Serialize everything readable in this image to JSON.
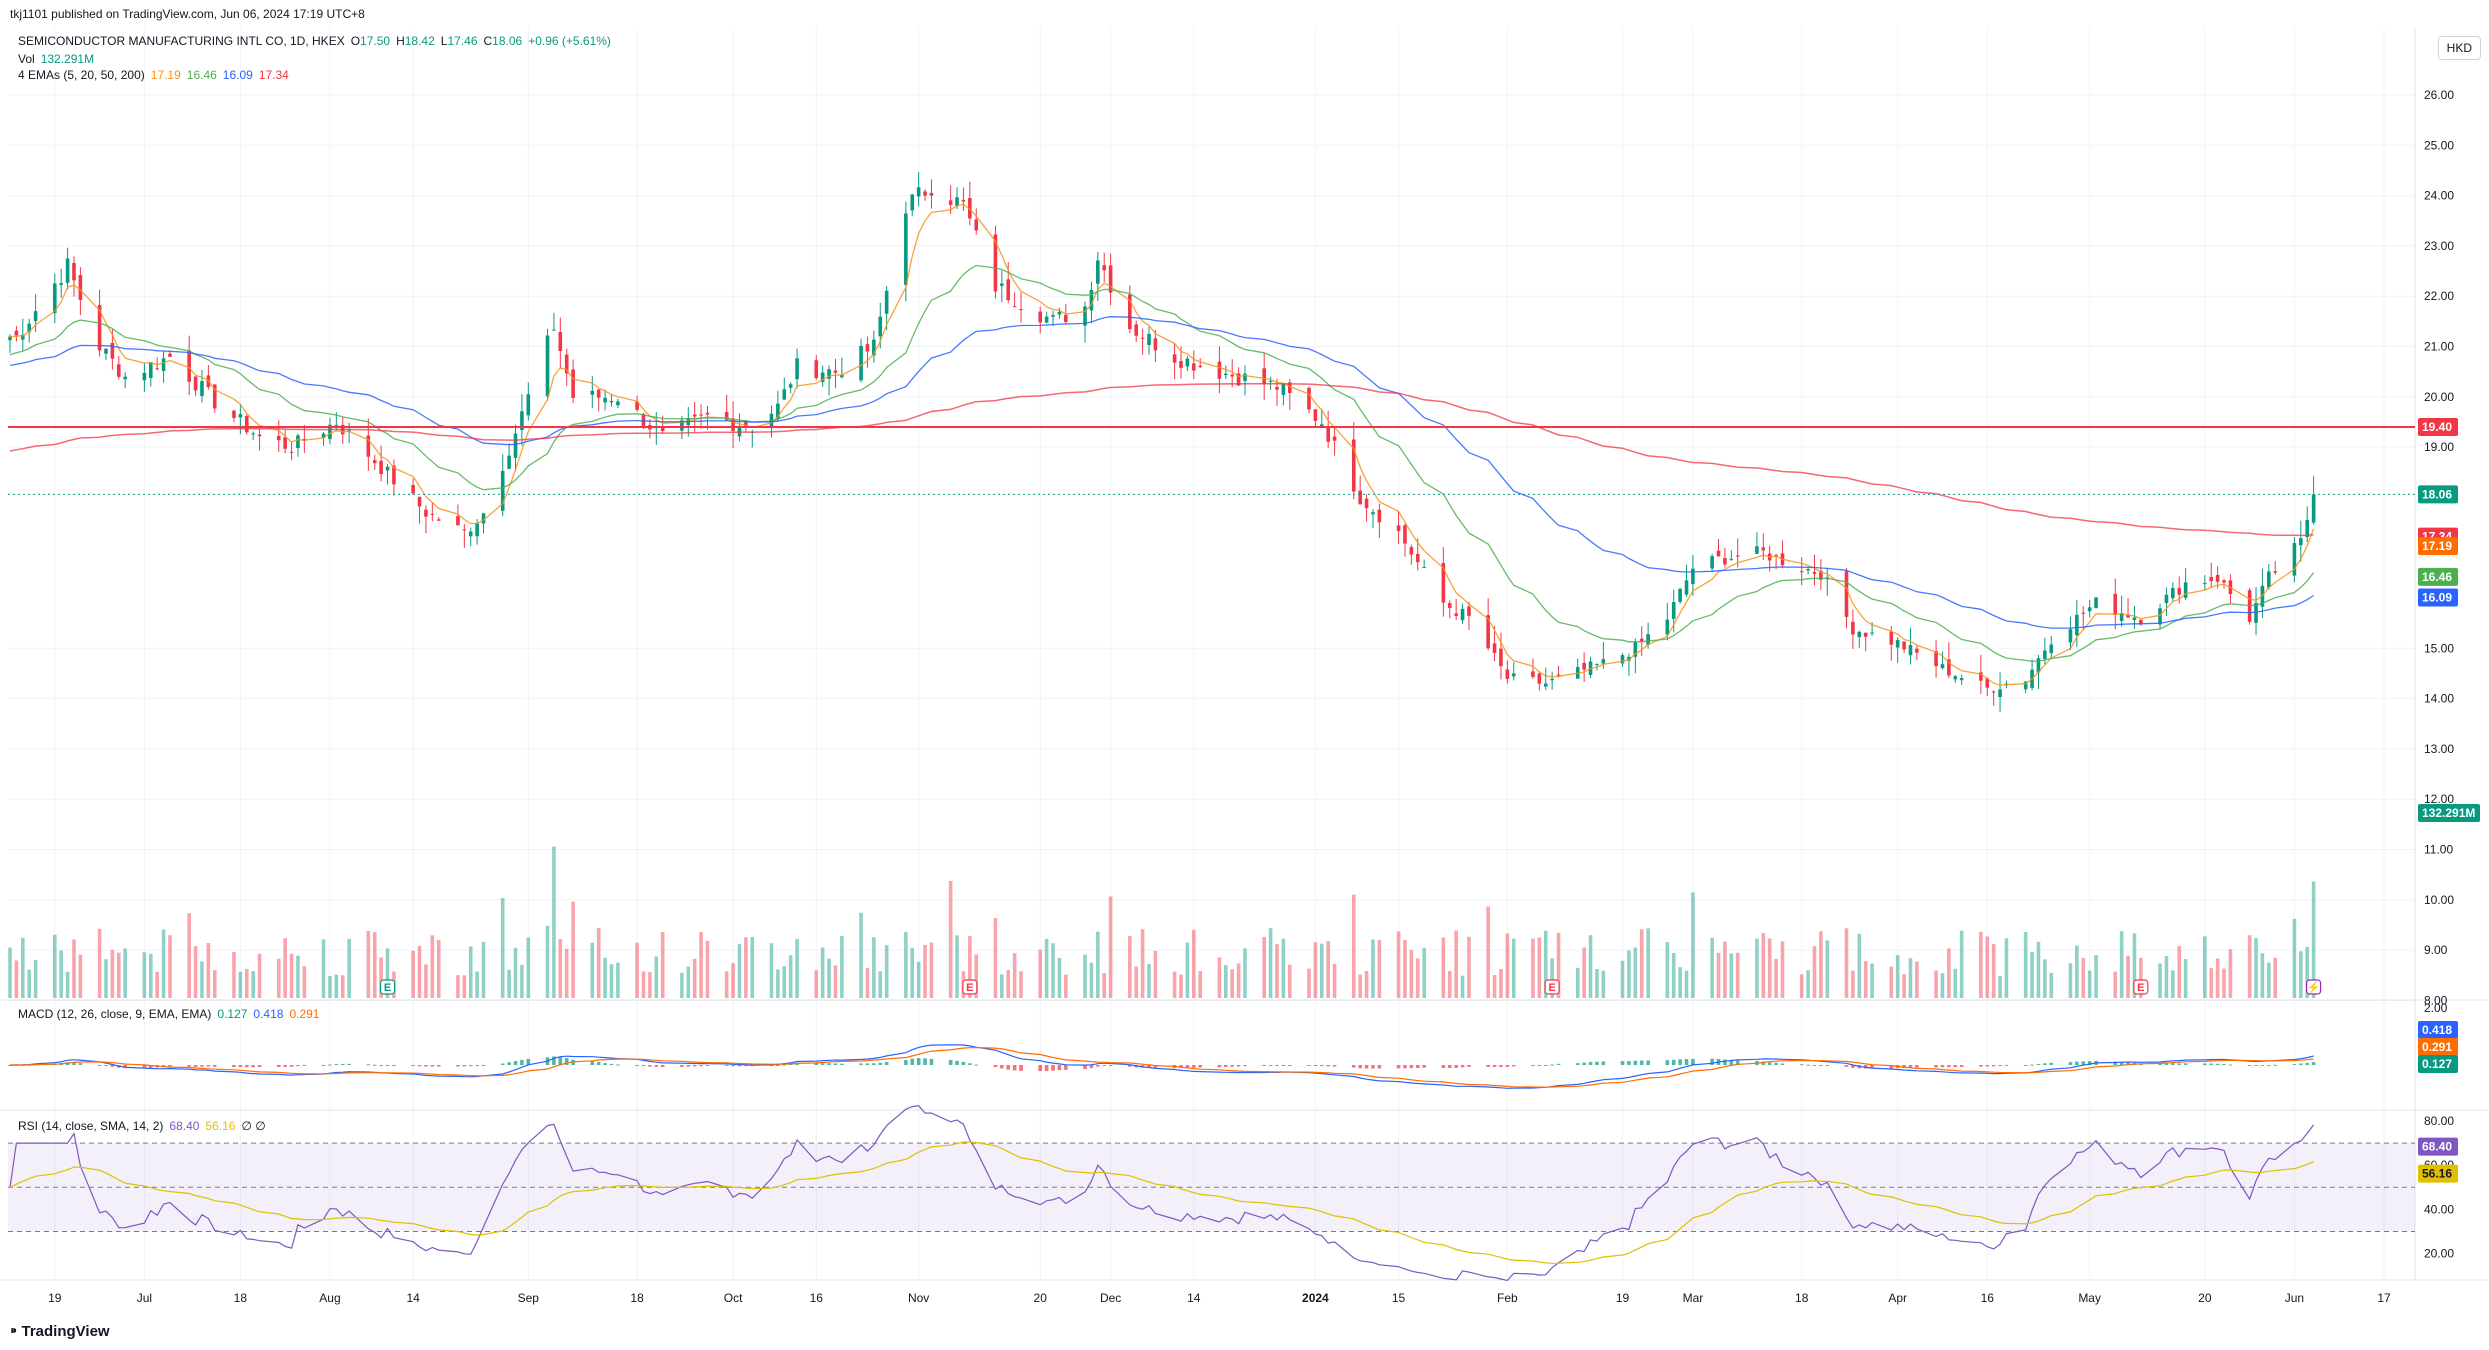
{
  "publish_line": "tkj1101 published on TradingView.com, Jun 06, 2024 17:19 UTC+8",
  "legend": {
    "symbol": "SEMICONDUCTOR MANUFACTURING INTL CO, 1D, HKEX",
    "open_label": "O",
    "open": "17.50",
    "high_label": "H",
    "high": "18.42",
    "low_label": "L",
    "low": "17.46",
    "close_label": "C",
    "close": "18.06",
    "change": "+0.96 (+5.61%)",
    "vol_label": "Vol",
    "vol": "132.291M",
    "ema_label": "4 EMAs (5, 20, 50, 200)",
    "ema5": "17.19",
    "ema20": "16.46",
    "ema50": "16.09",
    "ema200": "17.34",
    "macd_label": "MACD (12, 26, close, 9, EMA, EMA)",
    "macd_hist": "0.127",
    "macd_line": "0.418",
    "macd_signal": "0.291",
    "rsi_label": "RSI (14, close, SMA, 14, 2)",
    "rsi": "68.40",
    "rsi_ma": "56.16",
    "rsi_extra": "∅ ∅"
  },
  "currency": "HKD",
  "brand": "TradingView",
  "colors": {
    "up": "#089981",
    "down": "#f23645",
    "ema5": "#f7931a",
    "ema20": "#4caf50",
    "ema50": "#2962ff",
    "ema200": "#f23645",
    "hline": "#f23645",
    "rsi": "#7e57c2",
    "rsi_ma": "#e0c000"
  },
  "chart_data": {
    "type": "candlestick",
    "symbol": "SEMICONDUCTOR MANUFACTURING INTL CO",
    "interval": "1D",
    "exchange": "HKEX",
    "currency": "HKD",
    "price_axis": {
      "ticks": [
        "26.00",
        "25.00",
        "24.00",
        "23.00",
        "22.00",
        "21.00",
        "20.00",
        "19.00",
        "15.00",
        "14.00",
        "13.00",
        "12.00",
        "11.00",
        "10.00",
        "9.00",
        "8.00"
      ],
      "ylim": [
        8.0,
        26.0
      ]
    },
    "time_axis": {
      "ticks": [
        "19",
        "Jul",
        "18",
        "Aug",
        "14",
        "Sep",
        "18",
        "Oct",
        "16",
        "Nov",
        "20",
        "Dec",
        "14",
        "2024",
        "15",
        "Feb",
        "19",
        "Mar",
        "18",
        "Apr",
        "16",
        "May",
        "20",
        "Jun",
        "17"
      ]
    },
    "price_tags": [
      {
        "value": "19.40",
        "color": "#f23645"
      },
      {
        "value": "18.06",
        "color": "#089981"
      },
      {
        "value": "17.34",
        "color": "#f23645"
      },
      {
        "value": "17.19",
        "color": "#ff6d00"
      },
      {
        "value": "16.46",
        "color": "#4caf50"
      },
      {
        "value": "16.09",
        "color": "#2962ff"
      },
      {
        "value": "132.291M",
        "color": "#089981"
      }
    ],
    "horizontal_line": 19.4,
    "last_price_line": 18.06,
    "price_anchors": [
      {
        "date": "2023-06-13",
        "close": 21.2
      },
      {
        "date": "2023-06-21",
        "close": 22.6
      },
      {
        "date": "2023-06-26",
        "close": 21.0
      },
      {
        "date": "2023-06-30",
        "close": 20.4
      },
      {
        "date": "2023-07-07",
        "close": 20.8
      },
      {
        "date": "2023-07-14",
        "close": 19.9
      },
      {
        "date": "2023-07-21",
        "close": 19.2
      },
      {
        "date": "2023-07-26",
        "close": 19.0
      },
      {
        "date": "2023-08-02",
        "close": 19.5
      },
      {
        "date": "2023-08-09",
        "close": 18.6
      },
      {
        "date": "2023-08-16",
        "close": 17.7
      },
      {
        "date": "2023-08-22",
        "close": 17.3
      },
      {
        "date": "2023-08-25",
        "close": 17.7
      },
      {
        "date": "2023-08-30",
        "close": 19.3
      },
      {
        "date": "2023-09-05",
        "close": 21.4
      },
      {
        "date": "2023-09-08",
        "close": 20.0
      },
      {
        "date": "2023-09-15",
        "close": 20.0
      },
      {
        "date": "2023-09-22",
        "close": 19.2
      },
      {
        "date": "2023-09-29",
        "close": 19.6
      },
      {
        "date": "2023-10-06",
        "close": 19.4
      },
      {
        "date": "2023-10-10",
        "close": 19.8
      },
      {
        "date": "2023-10-13",
        "close": 20.6
      },
      {
        "date": "2023-10-19",
        "close": 20.5
      },
      {
        "date": "2023-10-25",
        "close": 21.0
      },
      {
        "date": "2023-10-30",
        "close": 23.8
      },
      {
        "date": "2023-11-03",
        "close": 24.2
      },
      {
        "date": "2023-11-08",
        "close": 23.8
      },
      {
        "date": "2023-11-13",
        "close": 22.2
      },
      {
        "date": "2023-11-17",
        "close": 21.9
      },
      {
        "date": "2023-11-22",
        "close": 21.5
      },
      {
        "date": "2023-11-27",
        "close": 21.8
      },
      {
        "date": "2023-11-29",
        "close": 22.8
      },
      {
        "date": "2023-12-04",
        "close": 21.4
      },
      {
        "date": "2023-12-11",
        "close": 20.8
      },
      {
        "date": "2023-12-18",
        "close": 20.5
      },
      {
        "date": "2023-12-27",
        "close": 20.2
      },
      {
        "date": "2024-01-03",
        "close": 19.5
      },
      {
        "date": "2024-01-09",
        "close": 18.0
      },
      {
        "date": "2024-01-15",
        "close": 17.3
      },
      {
        "date": "2024-01-22",
        "close": 15.9
      },
      {
        "date": "2024-01-26",
        "close": 15.6
      },
      {
        "date": "2024-02-01",
        "close": 14.4
      },
      {
        "date": "2024-02-07",
        "close": 14.3
      },
      {
        "date": "2024-02-16",
        "close": 14.7
      },
      {
        "date": "2024-02-21",
        "close": 15.0
      },
      {
        "date": "2024-02-26",
        "close": 15.6
      },
      {
        "date": "2024-03-01",
        "close": 16.6
      },
      {
        "date": "2024-03-06",
        "close": 16.8
      },
      {
        "date": "2024-03-12",
        "close": 16.9
      },
      {
        "date": "2024-03-18",
        "close": 16.6
      },
      {
        "date": "2024-03-21",
        "close": 16.5
      },
      {
        "date": "2024-03-26",
        "close": 15.4
      },
      {
        "date": "2024-04-02",
        "close": 15.1
      },
      {
        "date": "2024-04-09",
        "close": 14.6
      },
      {
        "date": "2024-04-16",
        "close": 14.2
      },
      {
        "date": "2024-04-22",
        "close": 14.4
      },
      {
        "date": "2024-04-26",
        "close": 15.2
      },
      {
        "date": "2024-05-03",
        "close": 15.9
      },
      {
        "date": "2024-05-10",
        "close": 15.6
      },
      {
        "date": "2024-05-17",
        "close": 16.3
      },
      {
        "date": "2024-05-22",
        "close": 16.4
      },
      {
        "date": "2024-05-27",
        "close": 15.6
      },
      {
        "date": "2024-05-30",
        "close": 16.4
      },
      {
        "date": "2024-06-04",
        "close": 17.1
      },
      {
        "date": "2024-06-06",
        "close": 18.06
      }
    ],
    "volume_axis_ticks": [],
    "macd_axis": {
      "ticks": [
        "2.00"
      ],
      "values": {
        "macd": 0.418,
        "signal": 0.291,
        "histogram": 0.127
      }
    },
    "rsi_axis": {
      "ticks": [
        "80.00",
        "60.00",
        "40.00",
        "20.00"
      ],
      "values": {
        "rsi": 68.4,
        "rsi_ma": 56.16
      },
      "bands": [
        70,
        30
      ]
    }
  }
}
